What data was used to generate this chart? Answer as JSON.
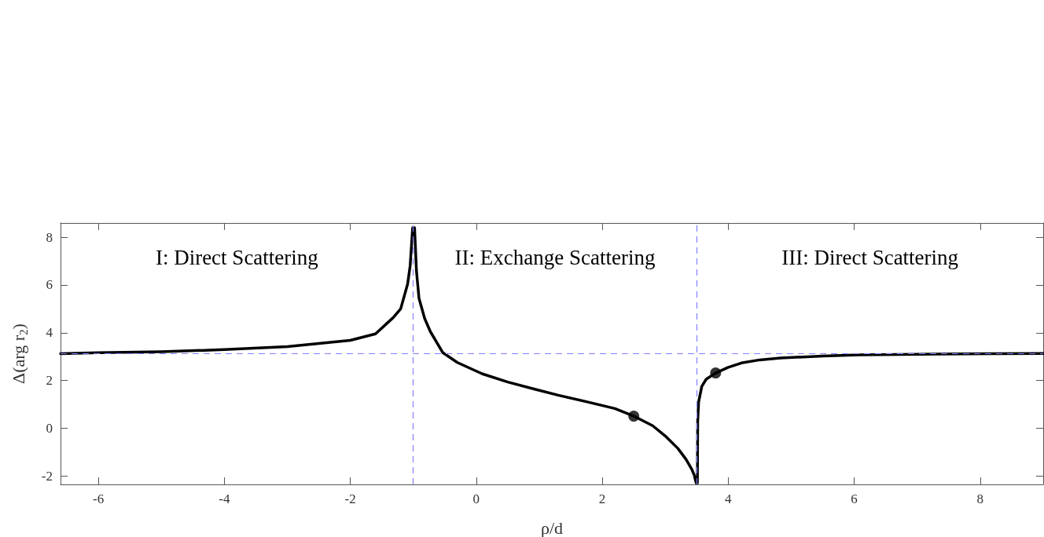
{
  "chart_data": {
    "type": "line",
    "xlabel": "ρ/d",
    "ylabel": "Δ(arg r$_{2}$)",
    "xlim": [
      -6.6,
      9.0
    ],
    "ylim": [
      -2.36,
      8.6
    ],
    "xticks": [
      -6,
      -4,
      -2,
      0,
      2,
      4,
      6,
      8
    ],
    "yticks": [
      -2,
      0,
      2,
      4,
      6,
      8
    ],
    "grid": false,
    "series": [
      {
        "color": "#000000",
        "marker": "none",
        "line_style": "solid",
        "x": [
          -6.6,
          -6,
          -5,
          -4,
          -3,
          -2,
          -1.6,
          -1.32,
          -1.2,
          -1.09,
          -1.05,
          -1.01,
          -0.99,
          -0.98,
          -0.95,
          -0.91,
          -0.82,
          -0.73,
          -0.53,
          -0.3,
          0.09,
          0.5,
          0.93,
          1.3,
          1.76,
          2.2,
          2.52,
          2.8,
          3.0,
          3.2,
          3.33,
          3.42,
          3.46,
          3.49,
          3.5,
          3.51,
          3.515,
          3.53,
          3.58,
          3.65,
          3.8,
          4.0,
          4.21,
          4.5,
          4.83,
          5.5,
          6.08,
          7.33,
          8.2,
          9.0
        ],
        "values": [
          3.12,
          3.16,
          3.2,
          3.29,
          3.42,
          3.68,
          3.95,
          4.63,
          5.0,
          6.04,
          6.8,
          8.4,
          null,
          8.4,
          6.6,
          5.45,
          4.6,
          4.05,
          3.16,
          2.75,
          2.28,
          1.93,
          1.63,
          1.38,
          1.1,
          0.82,
          0.48,
          0.1,
          -0.33,
          -0.85,
          -1.31,
          -1.72,
          -1.97,
          -2.3,
          null,
          -2.3,
          0.3,
          1.1,
          1.75,
          2.05,
          2.31,
          2.55,
          2.73,
          2.86,
          2.94,
          3.02,
          3.07,
          3.1,
          3.12,
          3.13
        ]
      },
      {
        "type": "scatter",
        "color": "#000000",
        "marker": "circle",
        "x": [
          2.5,
          3.8
        ],
        "values": [
          0.5,
          2.31
        ]
      }
    ],
    "ref_lines": [
      {
        "axis": "y",
        "value": 3.14,
        "color": "#8080ff",
        "line_style": "dashed"
      },
      {
        "axis": "x",
        "value": -1,
        "color": "#8080ff",
        "line_style": "dashed"
      },
      {
        "axis": "x",
        "value": 3.5,
        "color": "#8080ff",
        "line_style": "dashed"
      }
    ],
    "annotations": [
      "I: Direct Scattering",
      "II: Exchange Scattering",
      "III: Direct Scattering"
    ]
  }
}
